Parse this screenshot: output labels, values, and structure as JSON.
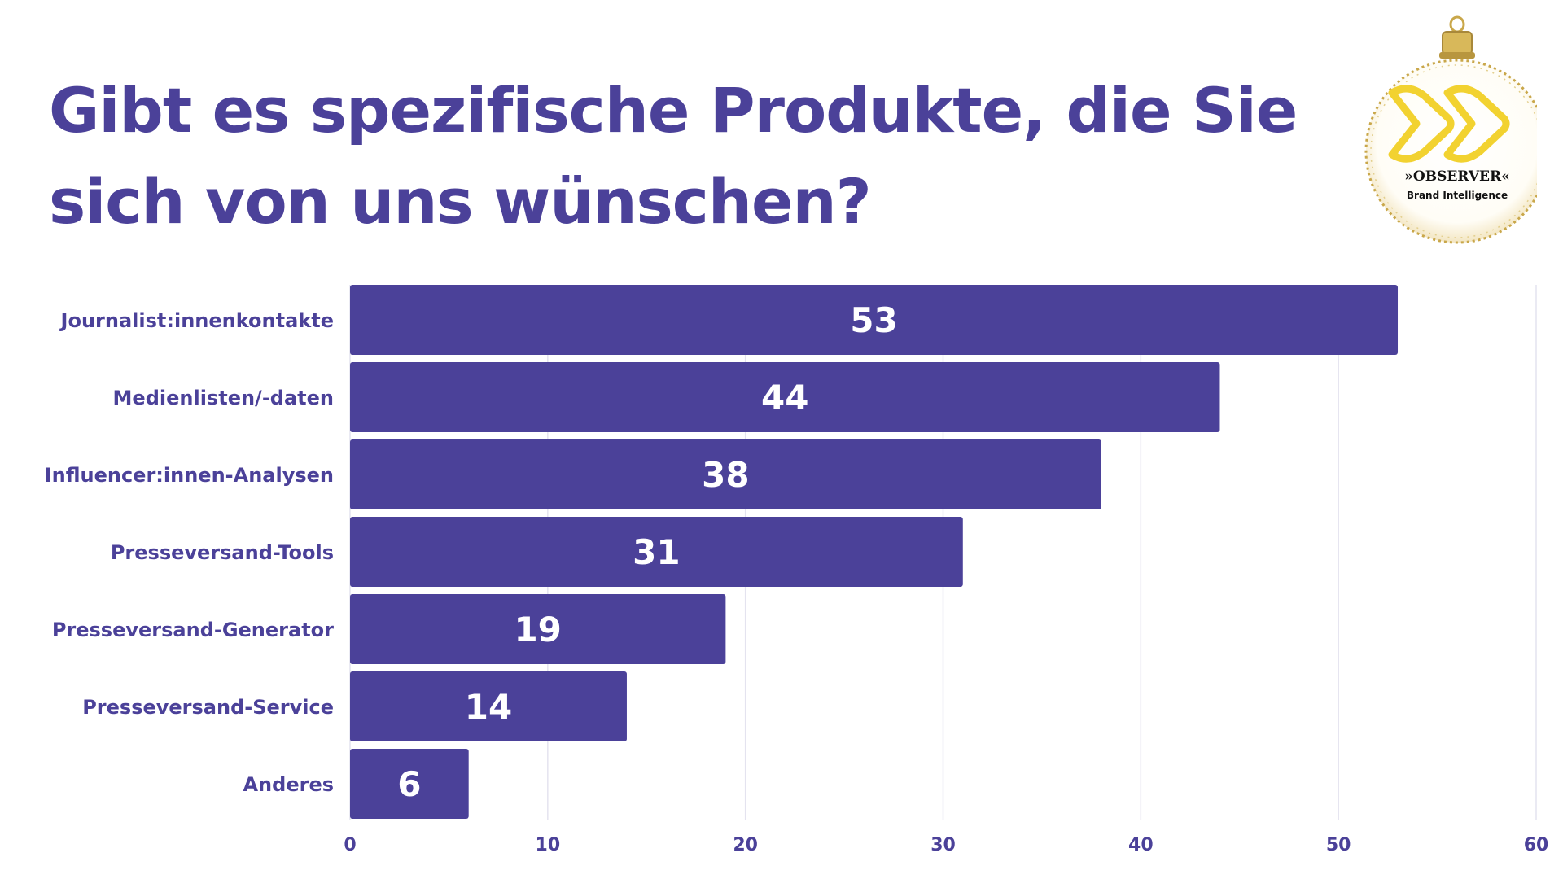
{
  "chart_data": {
    "type": "bar",
    "orientation": "horizontal",
    "title": "Gibt es spezifische Produkte, die Sie sich von uns wünschen?",
    "categories": [
      "Journalist:innenkontakte",
      "Medienlisten/-daten",
      "Influencer:innen-Analysen",
      "Presseversand-Tools",
      "Presseversand-Generator",
      "Presseversand-Service",
      "Anderes"
    ],
    "values": [
      53,
      44,
      38,
      31,
      19,
      14,
      6
    ],
    "xlim": [
      0,
      60
    ],
    "xticks": [
      0,
      10,
      20,
      30,
      40,
      50,
      60
    ],
    "grid": true,
    "bar_color": "#4b4199",
    "data_labels": true
  },
  "logo": {
    "name": "»OBSERVER«",
    "tagline": "Brand Intelligence",
    "accent": "#f2d230",
    "gold": "#c9a74a"
  }
}
